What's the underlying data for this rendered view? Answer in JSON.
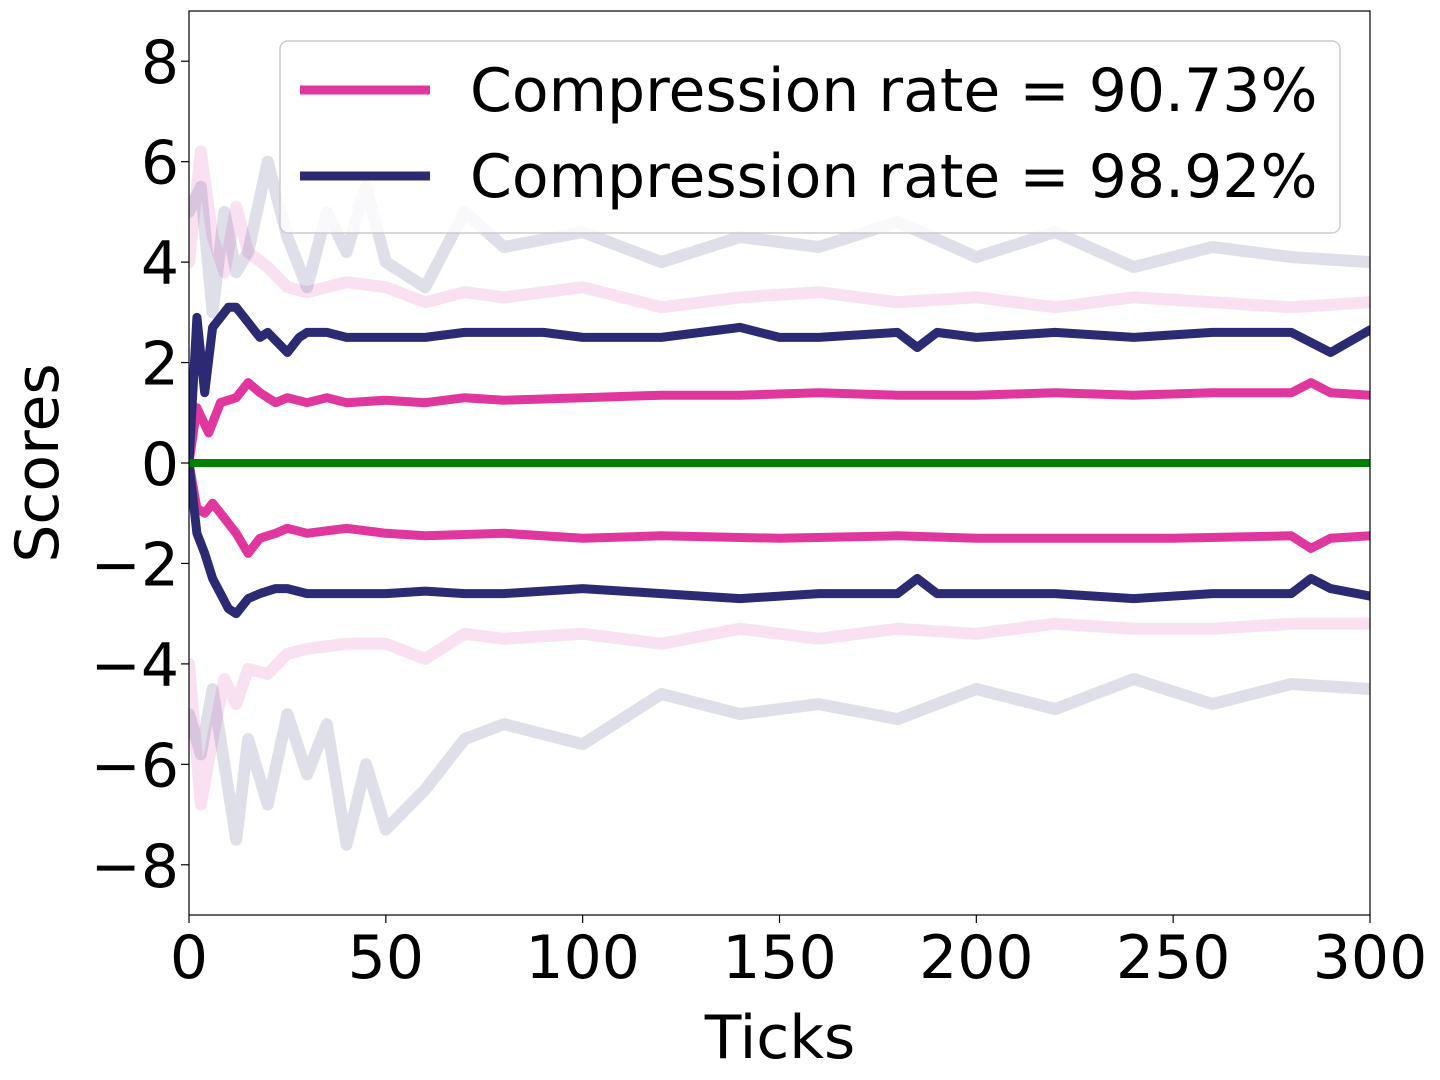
{
  "chart_data": {
    "type": "line",
    "xlabel": "Ticks",
    "ylabel": "Scores",
    "xlim": [
      0,
      300
    ],
    "ylim": [
      -9,
      9
    ],
    "xticks": [
      0,
      50,
      100,
      150,
      200,
      250,
      300
    ],
    "xtick_labels": [
      "0",
      "50",
      "100",
      "150",
      "200",
      "250",
      "300"
    ],
    "yticks": [
      -8,
      -6,
      -4,
      -2,
      0,
      2,
      4,
      6,
      8
    ],
    "ytick_labels": [
      "−8",
      "−6",
      "−4",
      "−2",
      "0",
      "2",
      "4",
      "6",
      "8"
    ],
    "grid": false,
    "legend_position": "top-right",
    "legend": [
      {
        "label": "Compression rate = 90.73%",
        "color": "#e0379e"
      },
      {
        "label": "Compression rate = 98.92%",
        "color": "#2b2a72"
      }
    ],
    "series": [
      {
        "name": "Compression rate = 90.73%",
        "role": "upper",
        "color": "#e0379e",
        "x": [
          0,
          2,
          5,
          8,
          12,
          15,
          18,
          22,
          25,
          30,
          35,
          40,
          50,
          60,
          70,
          80,
          100,
          120,
          140,
          160,
          180,
          200,
          220,
          240,
          260,
          280,
          285,
          290,
          300
        ],
        "y": [
          0,
          1.1,
          0.6,
          1.2,
          1.3,
          1.6,
          1.4,
          1.2,
          1.3,
          1.2,
          1.3,
          1.2,
          1.25,
          1.2,
          1.3,
          1.25,
          1.3,
          1.35,
          1.35,
          1.4,
          1.35,
          1.35,
          1.4,
          1.35,
          1.4,
          1.4,
          1.6,
          1.4,
          1.35
        ]
      },
      {
        "name": "Compression rate = 90.73%",
        "role": "lower",
        "color": "#e0379e",
        "x": [
          0,
          2,
          4,
          6,
          8,
          12,
          15,
          18,
          22,
          25,
          30,
          40,
          50,
          60,
          80,
          100,
          120,
          150,
          180,
          200,
          220,
          250,
          280,
          285,
          290,
          300
        ],
        "y": [
          0,
          -0.9,
          -1.0,
          -0.8,
          -1.0,
          -1.4,
          -1.8,
          -1.5,
          -1.4,
          -1.3,
          -1.4,
          -1.3,
          -1.4,
          -1.45,
          -1.4,
          -1.5,
          -1.45,
          -1.5,
          -1.45,
          -1.5,
          -1.5,
          -1.5,
          -1.45,
          -1.7,
          -1.5,
          -1.45
        ]
      },
      {
        "name": "Compression rate = 98.92%",
        "role": "upper",
        "color": "#2b2a72",
        "x": [
          0,
          2,
          4,
          6,
          8,
          10,
          12,
          15,
          18,
          20,
          25,
          28,
          30,
          35,
          40,
          50,
          60,
          70,
          80,
          90,
          100,
          120,
          140,
          150,
          160,
          180,
          185,
          190,
          200,
          220,
          240,
          260,
          280,
          290,
          300
        ],
        "y": [
          0,
          2.9,
          1.4,
          2.7,
          2.9,
          3.1,
          3.1,
          2.8,
          2.5,
          2.6,
          2.2,
          2.5,
          2.6,
          2.6,
          2.5,
          2.5,
          2.5,
          2.6,
          2.6,
          2.6,
          2.5,
          2.5,
          2.7,
          2.5,
          2.5,
          2.6,
          2.3,
          2.6,
          2.5,
          2.6,
          2.5,
          2.6,
          2.6,
          2.2,
          2.65
        ]
      },
      {
        "name": "Compression rate = 98.92%",
        "role": "lower",
        "color": "#2b2a72",
        "x": [
          0,
          2,
          4,
          6,
          8,
          10,
          12,
          15,
          18,
          22,
          25,
          30,
          40,
          50,
          60,
          70,
          80,
          100,
          120,
          140,
          160,
          180,
          185,
          190,
          200,
          220,
          240,
          260,
          280,
          285,
          290,
          300
        ],
        "y": [
          0,
          -1.4,
          -1.8,
          -2.3,
          -2.6,
          -2.9,
          -3.0,
          -2.7,
          -2.6,
          -2.5,
          -2.5,
          -2.6,
          -2.6,
          -2.6,
          -2.55,
          -2.6,
          -2.6,
          -2.5,
          -2.6,
          -2.7,
          -2.6,
          -2.6,
          -2.3,
          -2.6,
          -2.6,
          -2.6,
          -2.7,
          -2.6,
          -2.6,
          -2.3,
          -2.5,
          -2.65
        ]
      },
      {
        "name": "Compression rate = 90.73%",
        "role": "upper-faint",
        "color": "#e0379e",
        "x": [
          0,
          3,
          6,
          9,
          12,
          15,
          20,
          25,
          30,
          40,
          50,
          60,
          70,
          80,
          100,
          120,
          140,
          160,
          180,
          200,
          220,
          240,
          260,
          280,
          300
        ],
        "y": [
          4.0,
          6.2,
          4.5,
          3.8,
          5.1,
          4.2,
          3.9,
          3.5,
          3.4,
          3.6,
          3.5,
          3.2,
          3.4,
          3.3,
          3.5,
          3.1,
          3.3,
          3.4,
          3.2,
          3.3,
          3.1,
          3.3,
          3.2,
          3.1,
          3.2
        ]
      },
      {
        "name": "Compression rate = 90.73%",
        "role": "lower-faint",
        "color": "#e0379e",
        "x": [
          0,
          3,
          6,
          9,
          12,
          15,
          20,
          25,
          30,
          40,
          50,
          60,
          70,
          80,
          100,
          120,
          140,
          160,
          180,
          200,
          220,
          240,
          260,
          280,
          300
        ],
        "y": [
          -4.0,
          -6.8,
          -5.5,
          -4.3,
          -4.8,
          -4.1,
          -4.2,
          -3.8,
          -3.7,
          -3.6,
          -3.6,
          -3.9,
          -3.4,
          -3.5,
          -3.4,
          -3.6,
          -3.3,
          -3.5,
          -3.3,
          -3.4,
          -3.2,
          -3.3,
          -3.3,
          -3.2,
          -3.2
        ]
      },
      {
        "name": "Compression rate = 98.92%",
        "role": "upper-faint",
        "color": "#2b2a72",
        "x": [
          0,
          3,
          6,
          9,
          12,
          15,
          20,
          25,
          30,
          35,
          40,
          45,
          50,
          60,
          70,
          80,
          100,
          120,
          140,
          160,
          180,
          200,
          220,
          240,
          260,
          280,
          300
        ],
        "y": [
          5.0,
          5.5,
          3.0,
          5.0,
          3.8,
          4.2,
          6.0,
          4.5,
          3.5,
          5.0,
          4.2,
          5.5,
          4.0,
          3.5,
          5.0,
          4.3,
          4.6,
          4.0,
          4.5,
          4.3,
          4.8,
          4.1,
          4.6,
          3.9,
          4.3,
          4.1,
          4.0
        ]
      },
      {
        "name": "Compression rate = 98.92%",
        "role": "lower-faint",
        "color": "#2b2a72",
        "x": [
          0,
          3,
          6,
          9,
          12,
          15,
          20,
          25,
          30,
          35,
          40,
          45,
          50,
          60,
          70,
          80,
          100,
          120,
          140,
          160,
          180,
          200,
          220,
          240,
          260,
          280,
          300
        ],
        "y": [
          -5.0,
          -5.8,
          -4.5,
          -6.0,
          -7.5,
          -5.5,
          -6.8,
          -5.0,
          -6.2,
          -5.2,
          -7.6,
          -6.0,
          -7.3,
          -6.5,
          -5.5,
          -5.2,
          -5.6,
          -4.6,
          -5.0,
          -4.8,
          -5.1,
          -4.5,
          -4.9,
          -4.3,
          -4.8,
          -4.4,
          -4.5
        ]
      },
      {
        "name": "",
        "role": "baseline",
        "color": "#008000",
        "x": [
          0,
          300
        ],
        "y": [
          0,
          0
        ]
      }
    ]
  }
}
